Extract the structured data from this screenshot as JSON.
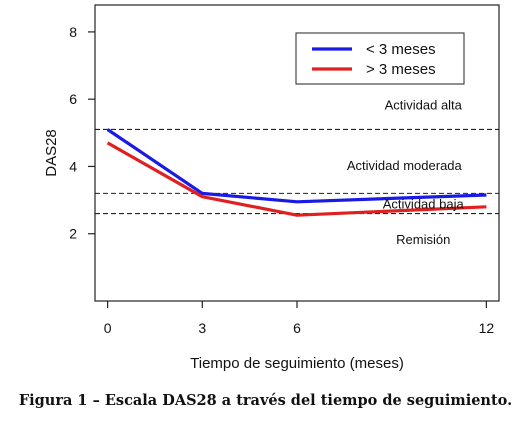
{
  "caption": "Figura 1 – Escala DAS28 a través del tiempo de seguimiento.",
  "chart_data": {
    "type": "line",
    "title": "",
    "xlabel": "Tiempo de seguimiento (meses)",
    "ylabel": "DAS28",
    "x": [
      0,
      3,
      6,
      12
    ],
    "xlim": [
      -0.4,
      12.4
    ],
    "ylim": [
      0,
      8.8
    ],
    "xticks": [
      0,
      3,
      6,
      12
    ],
    "yticks": [
      2,
      4,
      6,
      8
    ],
    "grid": false,
    "legend_position": "top-right",
    "series": [
      {
        "name": "< 3 meses",
        "color": "#1a1ae6",
        "values": [
          5.1,
          3.2,
          2.95,
          3.15
        ]
      },
      {
        "name": "> 3 meses",
        "color": "#e02020",
        "values": [
          4.7,
          3.1,
          2.55,
          2.8
        ]
      }
    ],
    "reference_lines": [
      5.1,
      3.2,
      2.6
    ],
    "zones": [
      {
        "label": "Actividad alta",
        "x": 10,
        "y": 5.7
      },
      {
        "label": "Actividad moderada",
        "x": 9.4,
        "y": 3.9
      },
      {
        "label": "Actividad baja",
        "x": 10,
        "y": 2.75
      },
      {
        "label": "Remisión",
        "x": 10,
        "y": 1.7
      }
    ]
  }
}
